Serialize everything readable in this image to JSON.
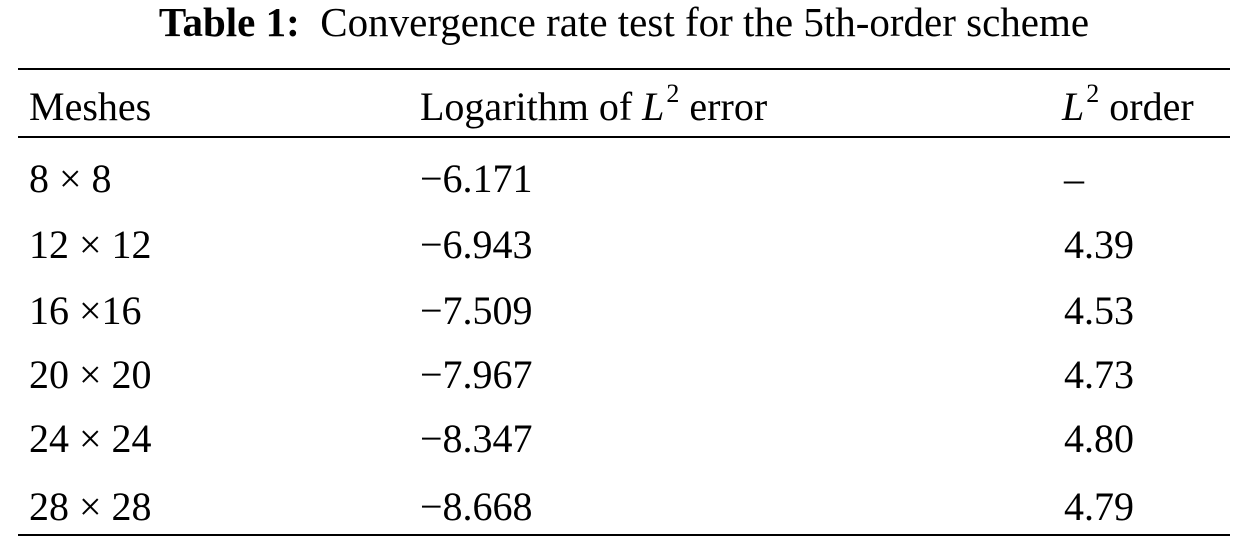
{
  "caption": {
    "label": "Table 1:",
    "text": "Convergence rate test for the 5th-order scheme"
  },
  "table": {
    "headers": {
      "meshes": "Meshes",
      "log_error_prefix": "Logarithm of ",
      "log_error_var": "L",
      "log_error_sup": "2",
      "log_error_suffix": " error",
      "order_var": "L",
      "order_sup": "2",
      "order_suffix": " order"
    },
    "rows": [
      {
        "mesh": "8 × 8",
        "log_error": "−6.171",
        "order": "–"
      },
      {
        "mesh": "12 × 12",
        "log_error": "−6.943",
        "order": "4.39"
      },
      {
        "mesh": "16 ×16",
        "log_error": "−7.509",
        "order": "4.53"
      },
      {
        "mesh": "20 × 20",
        "log_error": "−7.967",
        "order": "4.73"
      },
      {
        "mesh": "24 × 24",
        "log_error": "−8.347",
        "order": "4.80"
      },
      {
        "mesh": "28 × 28",
        "log_error": "−8.668",
        "order": "4.79"
      }
    ]
  }
}
